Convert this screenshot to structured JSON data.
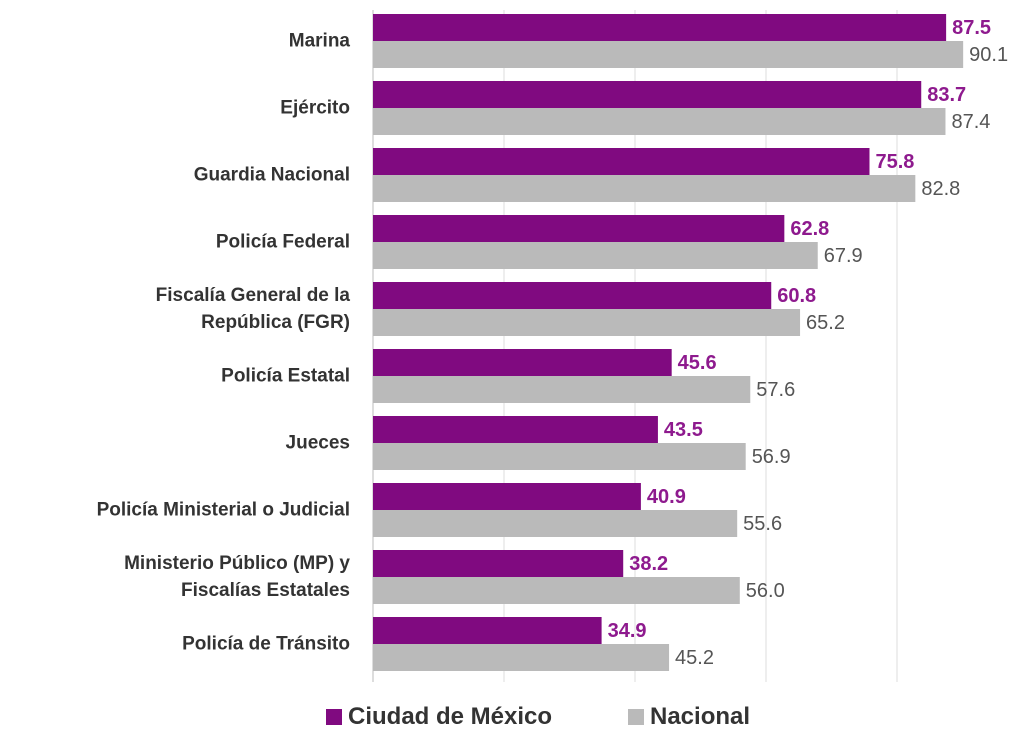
{
  "chart_data": {
    "type": "bar",
    "orientation": "horizontal",
    "categories": [
      "Marina",
      "Ejército",
      "Guardia Nacional",
      "Policía Federal",
      "Fiscalía General de la\nRepública (FGR)",
      "Policía Estatal",
      "Jueces",
      "Policía Ministerial o Judicial",
      "Ministerio Público (MP) y\nFiscalías Estatales",
      "Policía de Tránsito"
    ],
    "series": [
      {
        "name": "Ciudad de México",
        "color": "#800a80",
        "values": [
          87.5,
          83.7,
          75.8,
          62.8,
          60.8,
          45.6,
          43.5,
          40.9,
          38.2,
          34.9
        ]
      },
      {
        "name": "Nacional",
        "color": "#bababa",
        "values": [
          90.1,
          87.4,
          82.8,
          67.9,
          65.2,
          57.6,
          56.9,
          55.6,
          56.0,
          45.2
        ],
        "value_labels": [
          "90.1",
          "87.4",
          "82.8",
          "67.9",
          "65.2",
          "57.6",
          "56.9",
          "55.6",
          "56.0",
          "45.2"
        ]
      }
    ],
    "xlim": [
      0,
      100
    ],
    "xticks": [
      0,
      20,
      40,
      60,
      80
    ],
    "grid": true,
    "legend": "bottom"
  }
}
